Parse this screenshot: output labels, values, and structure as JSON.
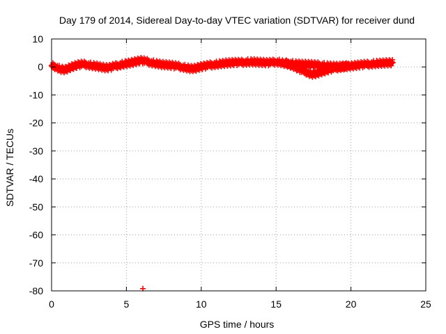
{
  "chart_data": {
    "type": "scatter",
    "title": "Day 179 of 2014, Sidereal Day-to-day VTEC variation (SDTVAR) for receiver dund",
    "xlabel": "GPS time / hours",
    "ylabel": "SDTVAR / TECUs",
    "xlim": [
      0,
      25
    ],
    "ylim": [
      -80,
      10
    ],
    "xticks": [
      0,
      5,
      10,
      15,
      20,
      25
    ],
    "yticks": [
      10,
      0,
      -10,
      -20,
      -30,
      -40,
      -50,
      -60,
      -70,
      -80
    ],
    "grid": true,
    "marker": "plus",
    "color": "#ff0000",
    "series": [
      {
        "name": "main-trace",
        "x": [
          0.0,
          0.3,
          0.6,
          0.9,
          1.2,
          1.5,
          1.8,
          2.1,
          2.4,
          2.7,
          3.0,
          3.3,
          3.6,
          3.9,
          4.2,
          4.5,
          4.8,
          5.1,
          5.4,
          5.7,
          6.0,
          6.3,
          6.6,
          6.9,
          7.2,
          7.5,
          7.8,
          8.1,
          8.4,
          8.7,
          9.0,
          9.3,
          9.6,
          9.9,
          10.2,
          10.5,
          10.8,
          11.1,
          11.4,
          11.7,
          12.0,
          12.3,
          12.6,
          12.9,
          13.2,
          13.5,
          13.8,
          14.1,
          14.4,
          14.7,
          15.0,
          15.3,
          15.6,
          15.9,
          16.2,
          16.5,
          16.8,
          17.1,
          17.4,
          17.7,
          18.0,
          18.3,
          18.6,
          18.9,
          19.2,
          19.5,
          19.8,
          20.1,
          20.4,
          20.7,
          21.0,
          21.3,
          21.6,
          21.9,
          22.2,
          22.5,
          22.8
        ],
        "y": [
          0.5,
          0.0,
          -0.8,
          -1.0,
          -0.3,
          0.3,
          0.8,
          1.0,
          0.8,
          0.5,
          0.3,
          0.0,
          -0.3,
          -0.2,
          0.3,
          0.6,
          1.0,
          1.3,
          1.6,
          2.0,
          2.3,
          2.0,
          1.6,
          1.3,
          1.0,
          0.8,
          0.7,
          0.5,
          0.3,
          0.0,
          -0.3,
          -0.6,
          -0.5,
          0.0,
          0.3,
          0.6,
          0.8,
          1.0,
          1.2,
          1.4,
          1.5,
          1.6,
          1.6,
          1.7,
          1.8,
          1.8,
          1.7,
          1.6,
          1.5,
          1.6,
          1.8,
          1.6,
          1.2,
          0.8,
          0.2,
          -0.6,
          -1.4,
          -2.0,
          -2.6,
          -2.3,
          -1.8,
          -1.3,
          -0.8,
          -0.5,
          -0.2,
          0.0,
          0.2,
          0.4,
          0.6,
          0.8,
          0.9,
          1.0,
          1.2,
          1.3,
          1.4,
          1.5,
          1.5
        ]
      },
      {
        "name": "upper-branch",
        "x": [
          15.6,
          15.9,
          16.2,
          16.5,
          16.8,
          17.1,
          17.4,
          17.7,
          18.0,
          18.3,
          18.6,
          18.9,
          19.2,
          19.5,
          19.8
        ],
        "y": [
          1.4,
          1.3,
          1.1,
          1.0,
          0.9,
          0.9,
          0.8,
          0.7,
          0.6,
          0.4,
          0.3,
          0.2,
          0.2,
          0.3,
          0.4
        ]
      },
      {
        "name": "outlier",
        "x": [
          6.1
        ],
        "y": [
          -79.2
        ]
      }
    ]
  }
}
